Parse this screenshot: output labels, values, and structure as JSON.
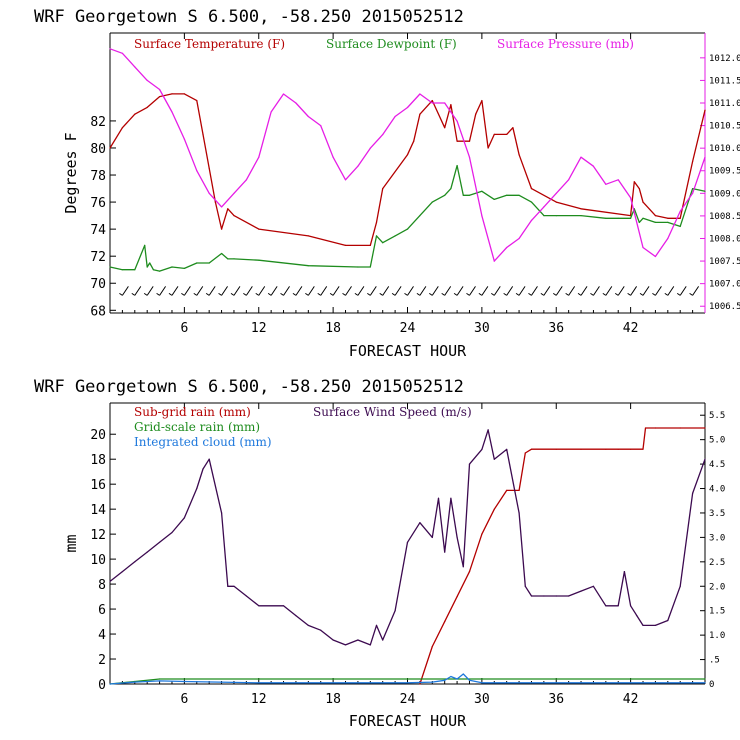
{
  "panels": [
    {
      "title": "WRF   Georgetown S   6.500, -58.250  2015052512",
      "xlabel": "FORECAST HOUR",
      "ylabel": "Degrees F",
      "xticks": [
        "6",
        "12",
        "18",
        "24",
        "30",
        "36",
        "42"
      ],
      "yticks": [
        "68",
        "70",
        "72",
        "74",
        "76",
        "78",
        "80",
        "82"
      ],
      "rticks": [
        "1006.5",
        "1007.0",
        "1007.5",
        "1008.0",
        "1008.5",
        "1009.0",
        "1009.5",
        "1010.0",
        "1010.5",
        "1011.0",
        "1011.5",
        "1012.0"
      ],
      "legend": [
        {
          "label": "Surface Temperature (F)",
          "color": "#b40000"
        },
        {
          "label": "Surface Dewpoint (F)",
          "color": "#1e8c1e"
        },
        {
          "label": "Surface Pressure (mb)",
          "color": "#e61ee6"
        }
      ]
    },
    {
      "title": "WRF   Georgetown S   6.500, -58.250  2015052512",
      "xlabel": "FORECAST HOUR",
      "ylabel": "mm",
      "xticks": [
        "6",
        "12",
        "18",
        "24",
        "30",
        "36",
        "42"
      ],
      "yticks": [
        "0",
        "2",
        "4",
        "6",
        "8",
        "10",
        "12",
        "14",
        "16",
        "18",
        "20"
      ],
      "rticks": [
        "0",
        ".5",
        "1.0",
        "1.5",
        "2.0",
        "2.5",
        "3.0",
        "3.5",
        "4.0",
        "4.5",
        "5.0",
        "5.5"
      ],
      "legend": [
        {
          "label": "Sub-grid rain (mm)",
          "color": "#b40000"
        },
        {
          "label": "Grid-scale rain (mm)",
          "color": "#1e8c1e"
        },
        {
          "label": "Integrated cloud (mm)",
          "color": "#1e78dc"
        },
        {
          "label": "Surface Wind Speed (m/s)",
          "color": "#3c0a50"
        }
      ]
    }
  ],
  "chart_data": [
    {
      "type": "line",
      "title": "WRF   Georgetown S   6.500, -58.250  2015052512",
      "xlabel": "FORECAST HOUR",
      "ylabel": "Degrees F",
      "xlim": [
        0,
        48
      ],
      "ylim": [
        67.8,
        88.5
      ],
      "y2lim": [
        1006.35,
        1012.55
      ],
      "series": [
        {
          "name": "Surface Temperature (F)",
          "axis": "left",
          "color": "#b40000",
          "x": [
            0,
            1,
            2,
            3,
            4,
            5,
            6,
            7,
            7.5,
            8,
            8.5,
            9,
            9.5,
            10,
            12,
            16,
            19,
            21,
            21.5,
            22,
            24,
            24.5,
            25,
            26,
            27,
            27.5,
            28,
            29,
            29.5,
            30,
            30.5,
            31,
            32,
            32.5,
            33,
            34,
            36,
            38,
            42,
            42.3,
            42.7,
            43,
            44,
            45,
            46,
            47,
            48
          ],
          "y": [
            80,
            81.5,
            82.5,
            83,
            83.8,
            84,
            84,
            83.5,
            81,
            78.5,
            76,
            74,
            75.5,
            75,
            74,
            73.5,
            72.8,
            72.8,
            74.5,
            77,
            79.5,
            80.5,
            82.5,
            83.5,
            81.5,
            83.2,
            80.5,
            80.5,
            82.5,
            83.5,
            80,
            81,
            81,
            81.5,
            79.5,
            77,
            76,
            75.5,
            75,
            77.5,
            77,
            76,
            75,
            74.8,
            74.8,
            79,
            82.8
          ]
        },
        {
          "name": "Surface Dewpoint (F)",
          "axis": "left",
          "color": "#1e8c1e",
          "x": [
            0,
            1,
            2,
            2.8,
            3,
            3.2,
            3.5,
            4,
            5,
            6,
            7,
            8,
            9,
            9.5,
            10,
            12,
            16,
            20,
            21,
            21.5,
            22,
            23,
            24,
            25,
            26,
            27,
            27.5,
            28,
            28.5,
            29,
            30,
            31,
            32,
            33,
            34,
            35,
            36,
            38,
            40,
            41,
            42,
            42.3,
            42.7,
            43,
            44,
            45,
            46,
            47,
            48
          ],
          "y": [
            71.2,
            71,
            71,
            72.8,
            71.2,
            71.5,
            71,
            70.9,
            71.2,
            71.1,
            71.5,
            71.5,
            72.2,
            71.8,
            71.8,
            71.7,
            71.3,
            71.2,
            71.2,
            73.5,
            73,
            73.5,
            74,
            75,
            76,
            76.5,
            77,
            78.7,
            76.5,
            76.5,
            76.8,
            76.2,
            76.5,
            76.5,
            76,
            75,
            75,
            75,
            74.8,
            74.8,
            74.8,
            75.5,
            74.5,
            74.8,
            74.5,
            74.5,
            74.2,
            77,
            76.8
          ]
        },
        {
          "name": "Surface Pressure (mb)",
          "axis": "right",
          "color": "#e61ee6",
          "x": [
            0,
            1,
            2,
            3,
            4,
            5,
            6,
            7,
            8,
            9,
            10,
            11,
            12,
            13,
            14,
            15,
            16,
            17,
            18,
            19,
            20,
            21,
            22,
            23,
            24,
            25,
            26,
            27,
            28,
            29,
            30,
            31,
            32,
            33,
            34,
            35,
            36,
            37,
            38,
            39,
            40,
            41,
            42,
            43,
            44,
            45,
            46,
            47,
            48
          ],
          "y": [
            1012.2,
            1012.1,
            1011.8,
            1011.5,
            1011.3,
            1010.8,
            1010.2,
            1009.5,
            1009.0,
            1008.7,
            1009.0,
            1009.3,
            1009.8,
            1010.8,
            1011.2,
            1011.0,
            1010.7,
            1010.5,
            1009.8,
            1009.3,
            1009.6,
            1010.0,
            1010.3,
            1010.7,
            1010.9,
            1011.2,
            1011.0,
            1011.0,
            1010.6,
            1009.8,
            1008.5,
            1007.5,
            1007.8,
            1008.0,
            1008.4,
            1008.7,
            1009.0,
            1009.3,
            1009.8,
            1009.6,
            1009.2,
            1009.3,
            1008.9,
            1007.8,
            1007.6,
            1008.0,
            1008.6,
            1009.0,
            1009.8
          ]
        }
      ]
    },
    {
      "type": "line",
      "title": "WRF   Georgetown S   6.500, -58.250  2015052512",
      "xlabel": "FORECAST HOUR",
      "ylabel": "mm",
      "xlim": [
        0,
        48
      ],
      "ylim": [
        0,
        22.5
      ],
      "y2lim": [
        0,
        5.75
      ],
      "series": [
        {
          "name": "Sub-grid rain (mm)",
          "axis": "left",
          "color": "#b40000",
          "x": [
            25,
            26,
            27,
            28,
            29,
            30,
            31,
            32,
            33,
            33.5,
            34,
            36,
            38,
            40,
            41,
            42,
            43,
            43.2,
            44,
            46,
            48
          ],
          "y": [
            0,
            3,
            5,
            7,
            9,
            12,
            14,
            15.5,
            15.5,
            18.5,
            18.8,
            18.8,
            18.8,
            18.8,
            18.8,
            18.8,
            18.8,
            20.5,
            20.5,
            20.5,
            20.5
          ]
        },
        {
          "name": "Grid-scale rain (mm)",
          "axis": "left",
          "color": "#1e8c1e",
          "x": [
            0,
            2,
            4,
            6,
            12,
            18,
            24,
            30,
            36,
            42,
            48
          ],
          "y": [
            0,
            0.2,
            0.4,
            0.4,
            0.4,
            0.4,
            0.4,
            0.4,
            0.4,
            0.4,
            0.4
          ]
        },
        {
          "name": "Integrated cloud (mm)",
          "axis": "left",
          "color": "#1e78dc",
          "x": [
            0,
            2,
            4,
            6,
            12,
            18,
            24,
            26,
            27,
            27.5,
            28,
            28.5,
            29,
            30,
            36,
            42,
            48
          ],
          "y": [
            0,
            0.15,
            0.25,
            0.2,
            0.1,
            0.1,
            0.1,
            0.15,
            0.3,
            0.6,
            0.4,
            0.8,
            0.3,
            0.1,
            0.1,
            0.1,
            0.1
          ]
        },
        {
          "name": "Surface Wind Speed (m/s)",
          "axis": "right",
          "color": "#3c0a50",
          "x": [
            0,
            1,
            2,
            3,
            4,
            5,
            6,
            7,
            7.5,
            8,
            9,
            9.5,
            10,
            11,
            12,
            14,
            15,
            16,
            17,
            18,
            19,
            20,
            21,
            21.5,
            22,
            23,
            24,
            25,
            26,
            26.5,
            27,
            27.5,
            28,
            28.5,
            29,
            30,
            30.5,
            31,
            32,
            33,
            33.5,
            34,
            35,
            36,
            37,
            38,
            39,
            40,
            41,
            41.5,
            42,
            42.5,
            43,
            44,
            45,
            46,
            47,
            48
          ],
          "y": [
            2.1,
            2.3,
            2.5,
            2.7,
            2.9,
            3.1,
            3.4,
            4.0,
            4.4,
            4.6,
            3.5,
            2.0,
            2.0,
            1.8,
            1.6,
            1.6,
            1.4,
            1.2,
            1.1,
            0.9,
            0.8,
            0.9,
            0.8,
            1.2,
            0.9,
            1.5,
            2.9,
            3.3,
            3.0,
            3.8,
            2.7,
            3.8,
            3.0,
            2.4,
            4.5,
            4.8,
            5.2,
            4.6,
            4.8,
            3.5,
            2.0,
            1.8,
            1.8,
            1.8,
            1.8,
            1.9,
            2.0,
            1.6,
            1.6,
            2.3,
            1.6,
            1.4,
            1.2,
            1.2,
            1.3,
            2.0,
            3.9,
            4.6
          ]
        }
      ]
    }
  ]
}
